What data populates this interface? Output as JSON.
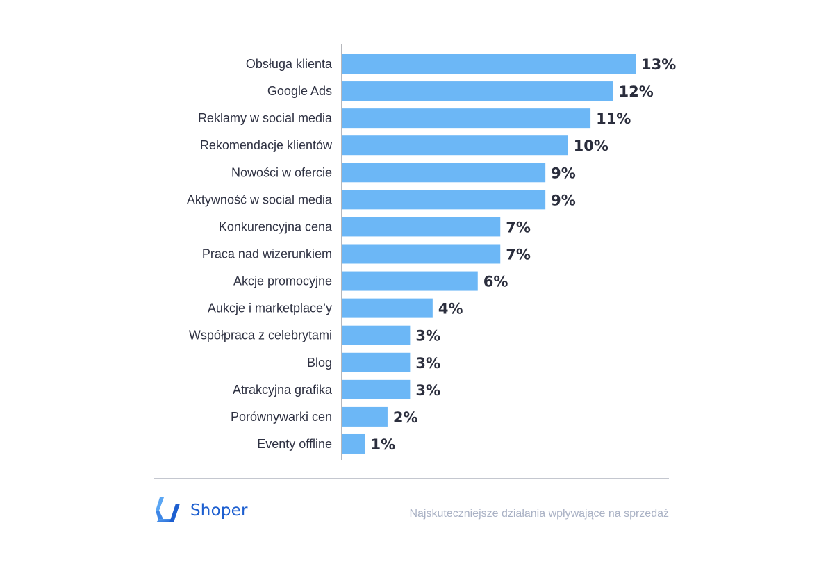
{
  "chart_data": {
    "type": "bar",
    "orientation": "horizontal",
    "categories": [
      "Obsługa klienta",
      "Google Ads",
      "Reklamy w social media",
      "Rekomendacje klientów",
      "Nowości w ofercie",
      "Aktywność w social media",
      "Konkurencyjna cena",
      "Praca nad wizerunkiem",
      "Akcje promocyjne",
      "Aukcje i marketplace’y",
      "Współpraca z celebrytami",
      "Blog",
      "Atrakcyjna grafika",
      "Porównywarki cen",
      "Eventy offline"
    ],
    "values": [
      13,
      12,
      11,
      10,
      9,
      9,
      7,
      7,
      6,
      4,
      3,
      3,
      3,
      2,
      1
    ],
    "value_labels": [
      "13%",
      "12%",
      "11%",
      "10%",
      "9%",
      "9%",
      "7%",
      "7%",
      "6%",
      "4%",
      "3%",
      "3%",
      "3%",
      "2%",
      "1%"
    ],
    "unit": "%",
    "xlim": [
      0,
      13
    ],
    "grid": false,
    "legend": "none",
    "bar_color": "#6cb7f6"
  },
  "footer": {
    "brand": "Shoper",
    "brand_color": "#1d5fd0",
    "caption": "Najskuteczniejsze działania wpływające na sprzedaż"
  },
  "icons": {
    "brand_logo": "shoper-logo-icon"
  }
}
